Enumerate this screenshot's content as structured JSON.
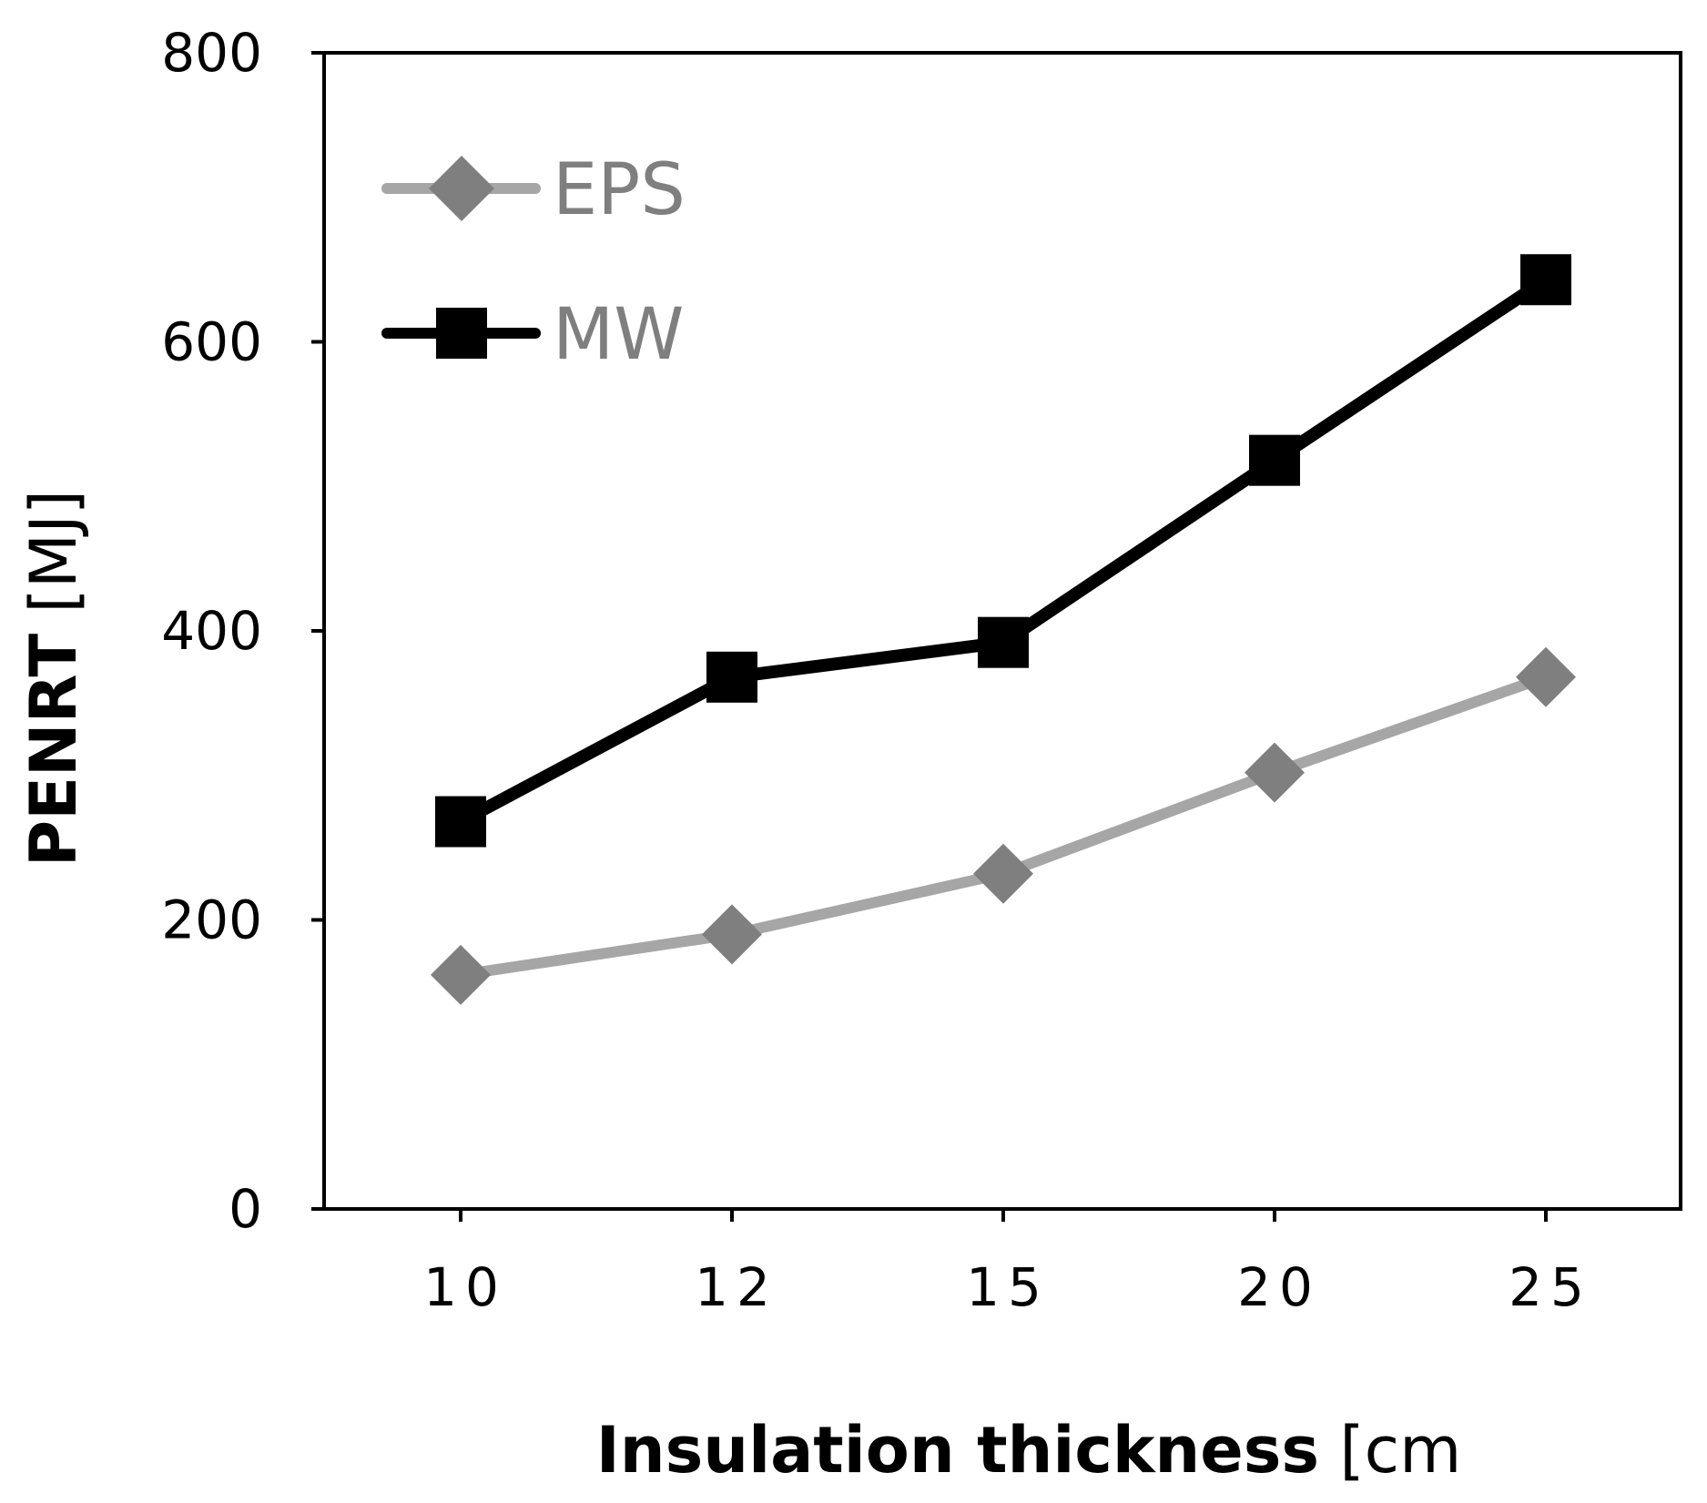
{
  "chart_data": {
    "type": "line",
    "title": "",
    "categories": [
      "10",
      "12",
      "15",
      "20",
      "25"
    ],
    "xlabel_bold": "Insulation thickness",
    "xlabel_unit": "[cm",
    "ylabel_bold": "PENRT",
    "ylabel_unit": "[MJ]",
    "ylim": [
      0,
      800
    ],
    "yticks": [
      0,
      200,
      400,
      600,
      800
    ],
    "grid": false,
    "legend_position": "top-left",
    "series": [
      {
        "name": "EPS",
        "values": [
          162,
          190,
          232,
          302,
          368
        ],
        "color": "#a6a6a6",
        "marker": "diamond",
        "marker_color": "#7f7f7f",
        "label_color": "#7f7f7f"
      },
      {
        "name": "MW",
        "values": [
          268,
          368,
          392,
          518,
          643
        ],
        "color": "#000000",
        "marker": "square",
        "marker_color": "#000000",
        "label_color": "#7f7f7f"
      }
    ]
  }
}
